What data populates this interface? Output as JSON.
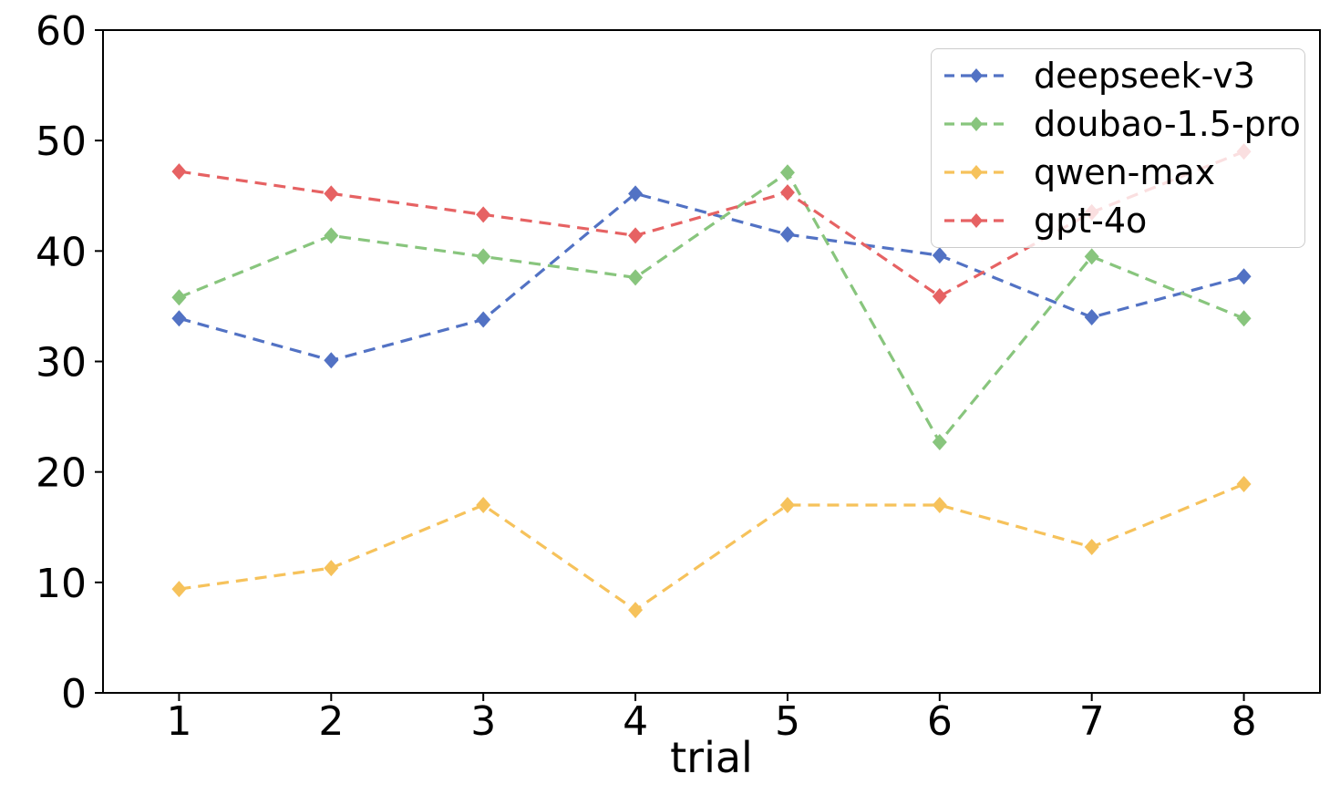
{
  "chart_data": {
    "type": "line",
    "title": "",
    "xlabel": "trial",
    "ylabel": "",
    "x": [
      1,
      2,
      3,
      4,
      5,
      6,
      7,
      8
    ],
    "xticks": [
      1,
      2,
      3,
      4,
      5,
      6,
      7,
      8
    ],
    "yticks": [
      0,
      10,
      20,
      30,
      40,
      50,
      60
    ],
    "xlim": [
      0.5,
      8.5
    ],
    "ylim": [
      0,
      60
    ],
    "grid": false,
    "line_style": "dashed",
    "marker": "diamond",
    "legend_position": "upper right",
    "series": [
      {
        "name": "deepseek-v3",
        "color": "#5272c4",
        "values": [
          33.9,
          30.1,
          33.8,
          45.2,
          41.5,
          39.6,
          34.0,
          37.7
        ]
      },
      {
        "name": "doubao-1.5-pro",
        "color": "#88c57d",
        "values": [
          35.8,
          41.4,
          39.5,
          37.6,
          47.1,
          22.7,
          39.5,
          33.9
        ]
      },
      {
        "name": "qwen-max",
        "color": "#f6c25b",
        "values": [
          9.4,
          11.3,
          17.0,
          7.5,
          17.0,
          17.0,
          13.2,
          18.9
        ]
      },
      {
        "name": "gpt-4o",
        "color": "#e66263",
        "values": [
          47.2,
          45.2,
          43.3,
          41.4,
          45.3,
          35.9,
          43.5,
          49.0
        ]
      }
    ]
  }
}
